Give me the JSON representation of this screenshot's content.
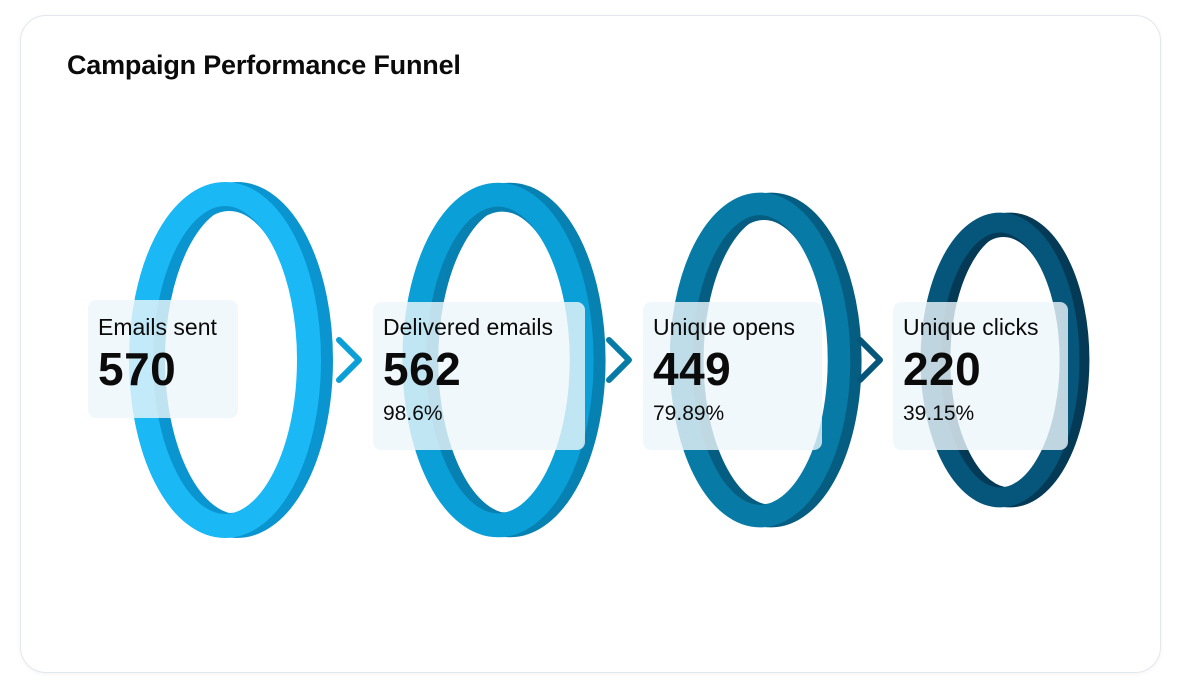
{
  "chart_data": {
    "type": "funnel",
    "title": "Campaign Performance Funnel",
    "stages": [
      {
        "label": "Emails sent",
        "value": 570,
        "value_text": "570",
        "percent_text": "",
        "color": "#1ab8f5",
        "shade": "#0a95d0"
      },
      {
        "label": "Delivered emails",
        "value": 562,
        "value_text": "562",
        "percent_text": "98.6%",
        "color": "#0a9fd7",
        "shade": "#0780b2"
      },
      {
        "label": "Unique opens",
        "value": 449,
        "value_text": "449",
        "percent_text": "79.89%",
        "color": "#077aa5",
        "shade": "#055e82"
      },
      {
        "label": "Unique clicks",
        "value": 220,
        "value_text": "220",
        "percent_text": "39.15%",
        "color": "#06557a",
        "shade": "#043a56"
      }
    ],
    "arrow_colors": [
      "#0a9fd7",
      "#077aa5",
      "#06557a"
    ]
  }
}
